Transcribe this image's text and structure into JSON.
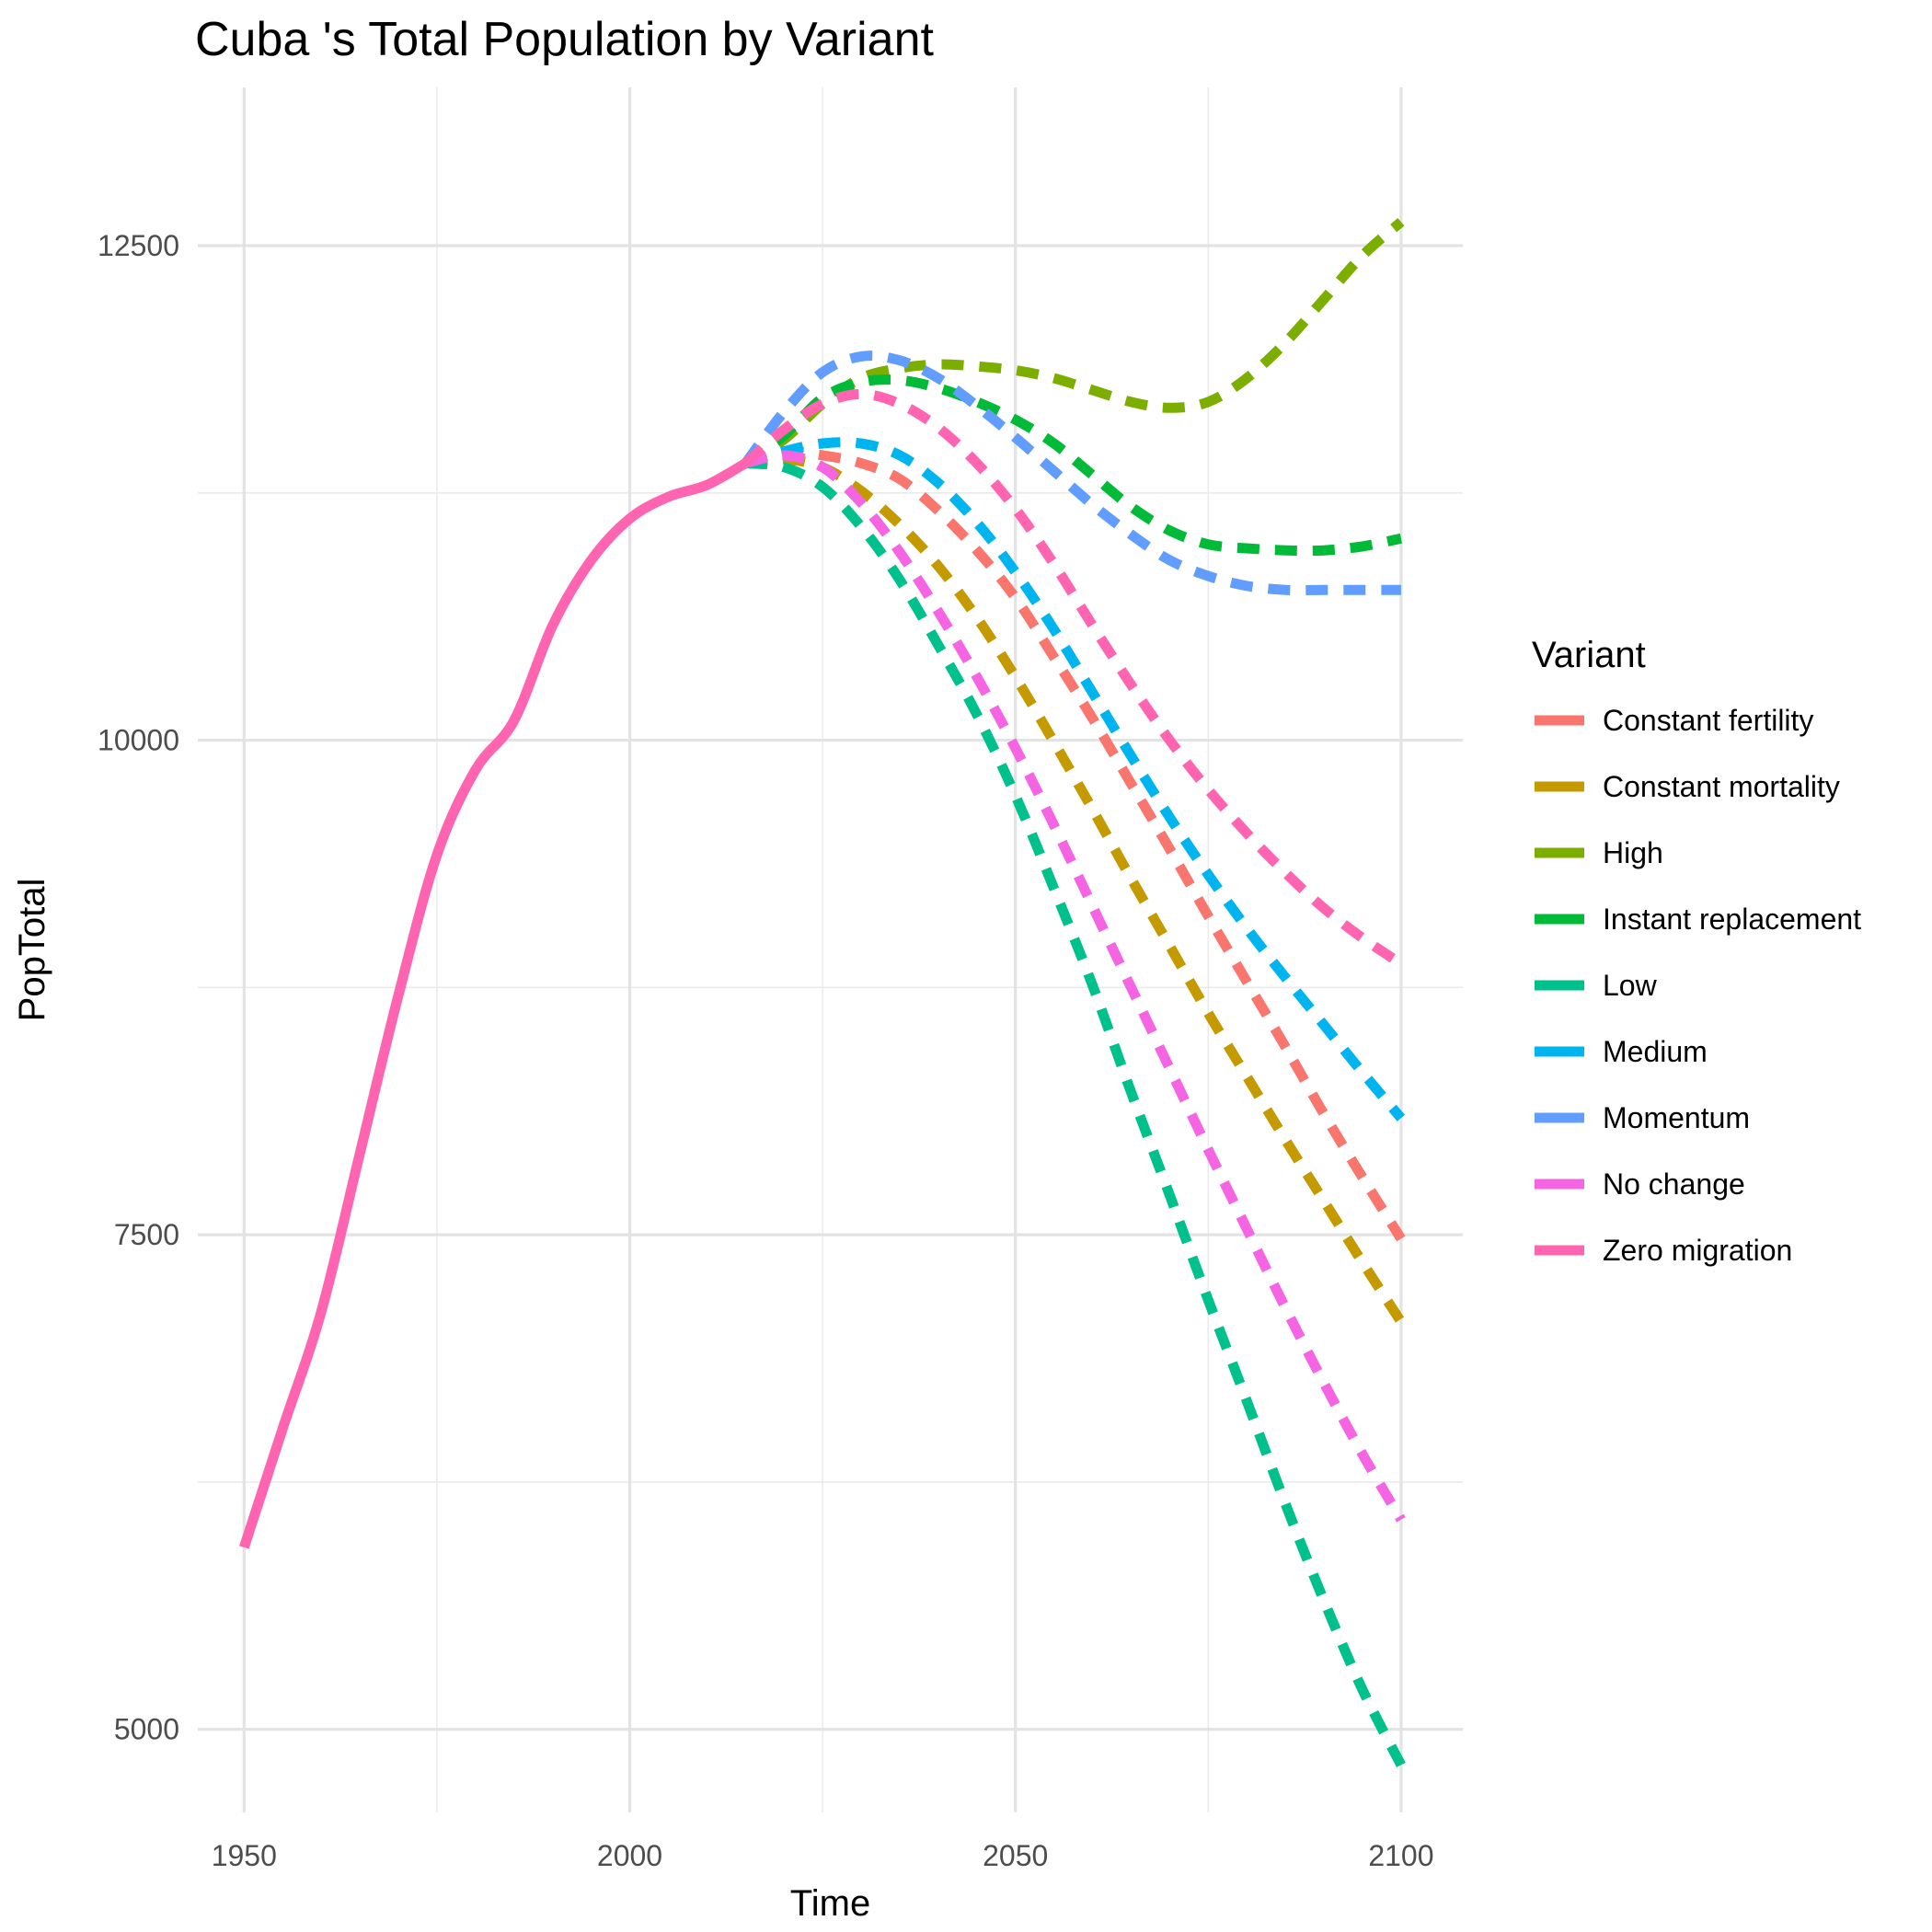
{
  "chart_data": {
    "type": "line",
    "title": "Cuba 's Total Population by Variant",
    "xlabel": "Time",
    "ylabel": "PopTotal",
    "xlim": [
      1944,
      2108
    ],
    "ylim": [
      4580,
      13300
    ],
    "x_ticks": [
      1950,
      2000,
      2050,
      2100
    ],
    "x_tick_labels": [
      "1950",
      "2000",
      "2050",
      "2100"
    ],
    "x_minor_ticks": [
      1975,
      2025,
      2075
    ],
    "y_ticks": [
      5000,
      7500,
      10000,
      12500
    ],
    "y_tick_labels": [
      "5000",
      "7500",
      "10000",
      "12500"
    ],
    "y_minor_ticks": [
      6250,
      8750,
      11250
    ],
    "grid": true,
    "legend": {
      "title": "Variant",
      "position": "right"
    },
    "history": {
      "series": "Zero migration",
      "x": [
        1950,
        1955,
        1960,
        1965,
        1970,
        1975,
        1980,
        1985,
        1990,
        1995,
        2000,
        2005,
        2010,
        2015
      ],
      "y": [
        5920,
        6520,
        7110,
        7910,
        8710,
        9420,
        9850,
        10100,
        10580,
        10910,
        11120,
        11230,
        11290,
        11400
      ]
    },
    "series": [
      {
        "name": "Constant fertility",
        "color": "#F8766D",
        "x": [
          2015,
          2020,
          2025,
          2030,
          2035,
          2040,
          2045,
          2050,
          2055,
          2060,
          2065,
          2070,
          2075,
          2080,
          2085,
          2090,
          2095,
          2100
        ],
        "y": [
          11400,
          11460,
          11440,
          11400,
          11320,
          11160,
          10960,
          10720,
          10420,
          10110,
          9780,
          9450,
          9110,
          8780,
          8450,
          8110,
          7790,
          7480
        ]
      },
      {
        "name": "Constant mortality",
        "color": "#C49A00",
        "x": [
          2015,
          2020,
          2025,
          2030,
          2035,
          2040,
          2045,
          2050,
          2055,
          2060,
          2065,
          2070,
          2075,
          2080,
          2085,
          2090,
          2095,
          2100
        ],
        "y": [
          11400,
          11420,
          11380,
          11260,
          11090,
          10880,
          10620,
          10320,
          9990,
          9650,
          9300,
          8960,
          8620,
          8300,
          7980,
          7670,
          7360,
          7060
        ]
      },
      {
        "name": "High",
        "color": "#7CAE00",
        "x": [
          2015,
          2020,
          2025,
          2030,
          2035,
          2040,
          2045,
          2050,
          2055,
          2060,
          2065,
          2070,
          2075,
          2080,
          2085,
          2090,
          2095,
          2100
        ],
        "y": [
          11400,
          11520,
          11700,
          11830,
          11880,
          11900,
          11890,
          11870,
          11830,
          11770,
          11710,
          11680,
          11710,
          11830,
          12010,
          12230,
          12450,
          12620
        ]
      },
      {
        "name": "Instant replacement",
        "color": "#00BA38",
        "x": [
          2015,
          2020,
          2025,
          2030,
          2035,
          2040,
          2045,
          2050,
          2055,
          2060,
          2065,
          2070,
          2075,
          2080,
          2085,
          2090,
          2095,
          2100
        ],
        "y": [
          11400,
          11540,
          11730,
          11810,
          11820,
          11780,
          11710,
          11620,
          11500,
          11340,
          11180,
          11060,
          10990,
          10970,
          10960,
          10960,
          10980,
          11020
        ]
      },
      {
        "name": "Low",
        "color": "#00C08B",
        "x": [
          2015,
          2020,
          2025,
          2030,
          2035,
          2040,
          2045,
          2050,
          2055,
          2060,
          2065,
          2070,
          2075,
          2080,
          2085,
          2090,
          2095,
          2100
        ],
        "y": [
          11400,
          11380,
          11280,
          11080,
          10810,
          10480,
          10130,
          9720,
          9250,
          8760,
          8220,
          7700,
          7170,
          6660,
          6140,
          5650,
          5200,
          4820
        ]
      },
      {
        "name": "Medium",
        "color": "#00B4EF",
        "x": [
          2015,
          2020,
          2025,
          2030,
          2035,
          2040,
          2045,
          2050,
          2055,
          2060,
          2065,
          2070,
          2075,
          2080,
          2085,
          2090,
          2095,
          2100
        ],
        "y": [
          11400,
          11460,
          11500,
          11500,
          11440,
          11300,
          11100,
          10850,
          10560,
          10240,
          9920,
          9610,
          9320,
          9050,
          8800,
          8560,
          8320,
          8090
        ]
      },
      {
        "name": "Momentum",
        "color": "#619CFF",
        "x": [
          2015,
          2020,
          2025,
          2030,
          2035,
          2040,
          2045,
          2050,
          2055,
          2060,
          2065,
          2070,
          2075,
          2080,
          2085,
          2090,
          2095,
          2100
        ],
        "y": [
          11400,
          11660,
          11860,
          11940,
          11920,
          11830,
          11690,
          11530,
          11360,
          11190,
          11040,
          10910,
          10830,
          10780,
          10760,
          10760,
          10760,
          10760
        ]
      },
      {
        "name": "No change",
        "color": "#F564E3",
        "x": [
          2015,
          2020,
          2025,
          2030,
          2035,
          2040,
          2045,
          2050,
          2055,
          2060,
          2065,
          2070,
          2075,
          2080,
          2085,
          2090,
          2095,
          2100
        ],
        "y": [
          11400,
          11440,
          11380,
          11200,
          10950,
          10650,
          10320,
          9960,
          9570,
          9160,
          8750,
          8340,
          7930,
          7530,
          7130,
          6750,
          6390,
          6060
        ]
      },
      {
        "name": "Zero migration",
        "color": "#FF64B0",
        "x": [
          2015,
          2020,
          2025,
          2030,
          2035,
          2040,
          2045,
          2050,
          2055,
          2060,
          2065,
          2070,
          2075,
          2080,
          2085,
          2090,
          2095,
          2100
        ],
        "y": [
          11400,
          11570,
          11700,
          11750,
          11700,
          11580,
          11400,
          11170,
          10890,
          10580,
          10280,
          10000,
          9750,
          9530,
          9330,
          9150,
          9000,
          8870
        ]
      }
    ]
  }
}
